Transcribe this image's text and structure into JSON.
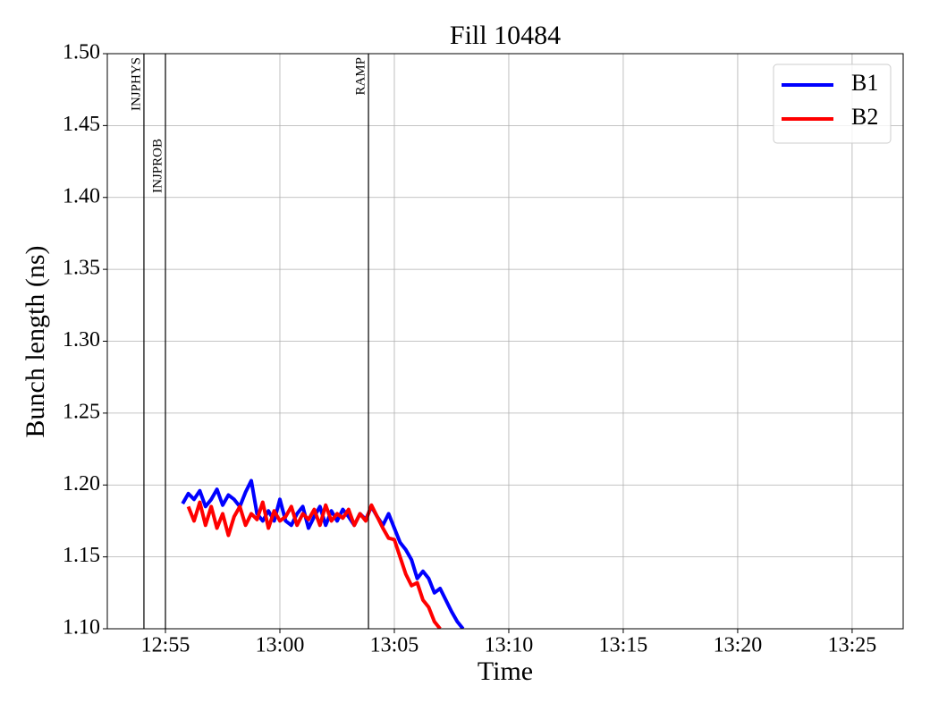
{
  "chart_data": {
    "type": "line",
    "title": "Fill 10484",
    "xlabel": "Time",
    "ylabel": "Bunch length (ns)",
    "xlim": [
      772.46,
      807.23
    ],
    "ylim": [
      1.1,
      1.5
    ],
    "xticks": [
      {
        "value": 775,
        "label": "12:55"
      },
      {
        "value": 780,
        "label": "13:00"
      },
      {
        "value": 785,
        "label": "13:05"
      },
      {
        "value": 790,
        "label": "13:10"
      },
      {
        "value": 795,
        "label": "13:15"
      },
      {
        "value": 800,
        "label": "13:20"
      },
      {
        "value": 805,
        "label": "13:25"
      }
    ],
    "yticks": [
      {
        "value": 1.1,
        "label": "1.10"
      },
      {
        "value": 1.15,
        "label": "1.15"
      },
      {
        "value": 1.2,
        "label": "1.20"
      },
      {
        "value": 1.25,
        "label": "1.25"
      },
      {
        "value": 1.3,
        "label": "1.30"
      },
      {
        "value": 1.35,
        "label": "1.35"
      },
      {
        "value": 1.4,
        "label": "1.40"
      },
      {
        "value": 1.45,
        "label": "1.45"
      },
      {
        "value": 1.5,
        "label": "1.50"
      }
    ],
    "grid": true,
    "legend": "upper right",
    "annotations": [
      {
        "label": "INJPHYS",
        "x": 774.06
      },
      {
        "label": "INJPROB",
        "x": 775.0
      },
      {
        "label": "RAMP",
        "x": 783.87
      }
    ],
    "series": [
      {
        "name": "B1",
        "color": "#0000ff",
        "x": [
          775.75,
          776,
          776.25,
          776.5,
          776.75,
          777,
          777.25,
          777.5,
          777.75,
          778,
          778.25,
          778.5,
          778.75,
          779,
          779.25,
          779.5,
          779.75,
          780,
          780.25,
          780.5,
          780.75,
          781,
          781.25,
          781.5,
          781.75,
          782,
          782.25,
          782.5,
          782.75,
          783,
          783.25,
          783.5,
          783.75,
          784,
          784.25,
          784.5,
          784.75,
          785,
          785.25,
          785.5,
          785.75,
          786,
          786.25,
          786.5,
          786.75,
          787,
          787.25,
          787.5,
          787.75,
          788
        ],
        "values": [
          1.187,
          1.194,
          1.19,
          1.196,
          1.185,
          1.19,
          1.197,
          1.186,
          1.193,
          1.19,
          1.185,
          1.195,
          1.203,
          1.18,
          1.175,
          1.182,
          1.175,
          1.19,
          1.175,
          1.172,
          1.18,
          1.185,
          1.17,
          1.178,
          1.185,
          1.172,
          1.182,
          1.175,
          1.183,
          1.178,
          1.172,
          1.18,
          1.176,
          1.185,
          1.178,
          1.172,
          1.18,
          1.17,
          1.16,
          1.155,
          1.148,
          1.135,
          1.14,
          1.135,
          1.125,
          1.128,
          1.12,
          1.112,
          1.105,
          1.1
        ]
      },
      {
        "name": "B2",
        "color": "#ff0000",
        "x": [
          776,
          776.25,
          776.5,
          776.75,
          777,
          777.25,
          777.5,
          777.75,
          778,
          778.25,
          778.5,
          778.75,
          779,
          779.25,
          779.5,
          779.75,
          780,
          780.25,
          780.5,
          780.75,
          781,
          781.25,
          781.5,
          781.75,
          782,
          782.25,
          782.5,
          782.75,
          783,
          783.25,
          783.5,
          783.75,
          784,
          784.25,
          784.5,
          784.75,
          785,
          785.25,
          785.5,
          785.75,
          786,
          786.25,
          786.5,
          786.75,
          787
        ],
        "values": [
          1.185,
          1.175,
          1.188,
          1.172,
          1.185,
          1.17,
          1.18,
          1.165,
          1.178,
          1.185,
          1.172,
          1.18,
          1.176,
          1.188,
          1.17,
          1.182,
          1.175,
          1.178,
          1.185,
          1.172,
          1.18,
          1.176,
          1.183,
          1.172,
          1.186,
          1.175,
          1.18,
          1.177,
          1.183,
          1.172,
          1.18,
          1.175,
          1.186,
          1.178,
          1.17,
          1.163,
          1.162,
          1.15,
          1.138,
          1.13,
          1.132,
          1.12,
          1.115,
          1.105,
          1.1
        ]
      }
    ]
  }
}
